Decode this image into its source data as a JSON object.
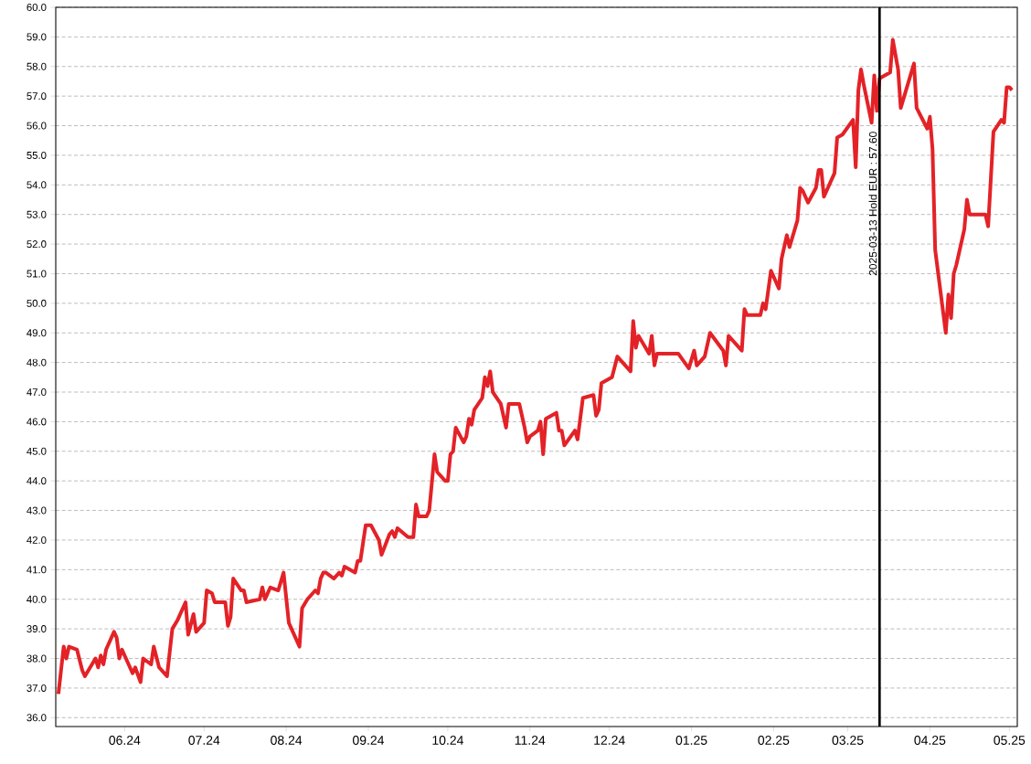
{
  "chart_data": {
    "type": "line",
    "color": "#e32227",
    "grid": "y",
    "xlim": [
      "2024-05-06",
      "2025-05-04"
    ],
    "ylim": [
      35.7,
      60
    ],
    "xticks": [
      {
        "value": "2024-06-01",
        "label": "06.24"
      },
      {
        "value": "2024-07-01",
        "label": "07.24"
      },
      {
        "value": "2024-08-01",
        "label": "08.24"
      },
      {
        "value": "2024-09-01",
        "label": "09.24"
      },
      {
        "value": "2024-10-01",
        "label": "10.24"
      },
      {
        "value": "2024-11-01",
        "label": "11.24"
      },
      {
        "value": "2024-12-01",
        "label": "12.24"
      },
      {
        "value": "2025-01-01",
        "label": "01.25"
      },
      {
        "value": "2025-02-01",
        "label": "02.25"
      },
      {
        "value": "2025-03-01",
        "label": "03.25"
      },
      {
        "value": "2025-04-01",
        "label": "04.25"
      },
      {
        "value": "2025-05-01",
        "label": "05.25"
      }
    ],
    "yticks": [
      {
        "value": 36,
        "label": "36.0"
      },
      {
        "value": 37,
        "label": "37.0"
      },
      {
        "value": 38,
        "label": "38.0"
      },
      {
        "value": 39,
        "label": "39.0"
      },
      {
        "value": 40,
        "label": "40.0"
      },
      {
        "value": 41,
        "label": "41.0"
      },
      {
        "value": 42,
        "label": "42.0"
      },
      {
        "value": 43,
        "label": "43.0"
      },
      {
        "value": 44,
        "label": "44.0"
      },
      {
        "value": 45,
        "label": "45.0"
      },
      {
        "value": 46,
        "label": "46.0"
      },
      {
        "value": 47,
        "label": "47.0"
      },
      {
        "value": 48,
        "label": "48.0"
      },
      {
        "value": 49,
        "label": "49.0"
      },
      {
        "value": 50,
        "label": "50.0"
      },
      {
        "value": 51,
        "label": "51.0"
      },
      {
        "value": 52,
        "label": "52.0"
      },
      {
        "value": 53,
        "label": "53.0"
      },
      {
        "value": 54,
        "label": "54.0"
      },
      {
        "value": 55,
        "label": "55.0"
      },
      {
        "value": 56,
        "label": "56.0"
      },
      {
        "value": 57,
        "label": "57.0"
      },
      {
        "value": 58,
        "label": "58.0"
      },
      {
        "value": 59,
        "label": "59.0"
      },
      {
        "value": 60,
        "label": "60.0"
      }
    ],
    "x": [
      "2024-05-07",
      "2024-05-09",
      "2024-05-10",
      "2024-05-11",
      "2024-05-14",
      "2024-05-16",
      "2024-05-17",
      "2024-05-21",
      "2024-05-22",
      "2024-05-23",
      "2024-05-24",
      "2024-05-25",
      "2024-05-28",
      "2024-05-29",
      "2024-05-30",
      "2024-05-31",
      "2024-06-04",
      "2024-06-05",
      "2024-06-07",
      "2024-06-08",
      "2024-06-11",
      "2024-06-12",
      "2024-06-14",
      "2024-06-17",
      "2024-06-19",
      "2024-06-21",
      "2024-06-24",
      "2024-06-25",
      "2024-06-27",
      "2024-06-28",
      "2024-07-01",
      "2024-07-02",
      "2024-07-04",
      "2024-07-05",
      "2024-07-09",
      "2024-07-10",
      "2024-07-11",
      "2024-07-12",
      "2024-07-15",
      "2024-07-16",
      "2024-07-17",
      "2024-07-22",
      "2024-07-23",
      "2024-07-24",
      "2024-07-26",
      "2024-07-29",
      "2024-07-31",
      "2024-08-02",
      "2024-08-06",
      "2024-08-07",
      "2024-08-09",
      "2024-08-12",
      "2024-08-13",
      "2024-08-14",
      "2024-08-15",
      "2024-08-16",
      "2024-08-19",
      "2024-08-21",
      "2024-08-22",
      "2024-08-23",
      "2024-08-27",
      "2024-08-28",
      "2024-08-29",
      "2024-08-31",
      "2024-09-02",
      "2024-09-05",
      "2024-09-06",
      "2024-09-09",
      "2024-09-10",
      "2024-09-11",
      "2024-09-12",
      "2024-09-16",
      "2024-09-18",
      "2024-09-19",
      "2024-09-20",
      "2024-09-23",
      "2024-09-24",
      "2024-09-26",
      "2024-09-27",
      "2024-09-30",
      "2024-10-01",
      "2024-10-02",
      "2024-10-03",
      "2024-10-04",
      "2024-10-07",
      "2024-10-08",
      "2024-10-09",
      "2024-10-10",
      "2024-10-11",
      "2024-10-14",
      "2024-10-15",
      "2024-10-16",
      "2024-10-17",
      "2024-10-18",
      "2024-10-21",
      "2024-10-23",
      "2024-10-24",
      "2024-10-28",
      "2024-10-30",
      "2024-10-31",
      "2024-11-01",
      "2024-11-04",
      "2024-11-05",
      "2024-11-06",
      "2024-11-07",
      "2024-11-11",
      "2024-11-12",
      "2024-11-13",
      "2024-11-14",
      "2024-11-18",
      "2024-11-19",
      "2024-11-21",
      "2024-11-25",
      "2024-11-26",
      "2024-11-27",
      "2024-11-28",
      "2024-12-02",
      "2024-12-04",
      "2024-12-05",
      "2024-12-09",
      "2024-12-10",
      "2024-12-11",
      "2024-12-12",
      "2024-12-16",
      "2024-12-17",
      "2024-12-18",
      "2024-12-19",
      "2024-12-27",
      "2024-12-31",
      "2025-01-02",
      "2025-01-03",
      "2025-01-06",
      "2025-01-08",
      "2025-01-13",
      "2025-01-14",
      "2025-01-15",
      "2025-01-20",
      "2025-01-21",
      "2025-01-22",
      "2025-01-27",
      "2025-01-28",
      "2025-01-29",
      "2025-01-31",
      "2025-02-03",
      "2025-02-04",
      "2025-02-06",
      "2025-02-07",
      "2025-02-10",
      "2025-02-11",
      "2025-02-12",
      "2025-02-14",
      "2025-02-17",
      "2025-02-18",
      "2025-02-19",
      "2025-02-20",
      "2025-02-24",
      "2025-02-25",
      "2025-02-27",
      "2025-03-03",
      "2025-03-04",
      "2025-03-05",
      "2025-03-06",
      "2025-03-07",
      "2025-03-10",
      "2025-03-11",
      "2025-03-12",
      "2025-03-13",
      "2025-03-17",
      "2025-03-18",
      "2025-03-20",
      "2025-03-21",
      "2025-03-26",
      "2025-03-27",
      "2025-03-31",
      "2025-04-01",
      "2025-04-02",
      "2025-04-03",
      "2025-04-07",
      "2025-04-08",
      "2025-04-09",
      "2025-04-10",
      "2025-04-11",
      "2025-04-14",
      "2025-04-15",
      "2025-04-16",
      "2025-04-22",
      "2025-04-23",
      "2025-04-25",
      "2025-04-28",
      "2025-04-29",
      "2025-04-30",
      "2025-05-01",
      "2025-05-02"
    ],
    "values": [
      36.8,
      38.4,
      38.0,
      38.4,
      38.3,
      37.6,
      37.4,
      38.0,
      37.7,
      38.1,
      37.8,
      38.3,
      38.9,
      38.7,
      38.0,
      38.3,
      37.5,
      37.7,
      37.2,
      38.0,
      37.8,
      38.4,
      37.7,
      37.4,
      39.0,
      39.3,
      39.9,
      38.8,
      39.5,
      38.9,
      39.2,
      40.3,
      40.2,
      39.9,
      39.9,
      39.1,
      39.4,
      40.7,
      40.3,
      40.3,
      39.9,
      40.0,
      40.4,
      40.0,
      40.4,
      40.3,
      40.9,
      39.2,
      38.4,
      39.7,
      40.0,
      40.3,
      40.2,
      40.7,
      40.9,
      40.9,
      40.7,
      40.9,
      40.8,
      41.1,
      40.9,
      41.3,
      41.3,
      42.5,
      42.5,
      42.0,
      41.5,
      42.2,
      42.3,
      42.1,
      42.4,
      42.1,
      42.1,
      43.2,
      42.8,
      42.8,
      43.0,
      44.9,
      44.3,
      44.0,
      44.0,
      44.9,
      45.0,
      45.8,
      45.3,
      45.5,
      46.1,
      45.9,
      46.4,
      46.8,
      47.5,
      47.2,
      47.7,
      47.0,
      46.6,
      45.8,
      46.6,
      46.6,
      45.8,
      45.3,
      45.5,
      45.7,
      46.0,
      44.9,
      46.1,
      46.3,
      45.7,
      45.7,
      45.2,
      45.7,
      45.4,
      46.8,
      46.9,
      46.2,
      46.4,
      47.3,
      47.5,
      48.2,
      48.1,
      47.7,
      49.4,
      48.5,
      48.9,
      48.3,
      48.9,
      47.9,
      48.3,
      48.3,
      47.8,
      48.4,
      47.9,
      48.2,
      49.0,
      48.4,
      47.9,
      48.9,
      48.4,
      49.8,
      49.6,
      49.6,
      50.0,
      49.8,
      51.1,
      50.5,
      51.5,
      52.3,
      51.9,
      52.8,
      53.9,
      53.8,
      53.4,
      53.9,
      54.5,
      54.5,
      53.6,
      54.4,
      55.6,
      55.7,
      56.2,
      54.6,
      57.2,
      57.9,
      57.4,
      56.1,
      57.7,
      56.5,
      57.6,
      57.8,
      58.9,
      57.9,
      56.6,
      58.1,
      56.6,
      55.9,
      56.3,
      55.2,
      51.8,
      49.0,
      50.3,
      49.5,
      51.0,
      51.3,
      52.5,
      53.5,
      53.0,
      53.0,
      52.6,
      55.8,
      56.2,
      56.1,
      57.3,
      57.3,
      57.2
    ],
    "ref_lines": [
      {
        "axis": "x",
        "value": "2025-03-13",
        "label": "2025-03-13 Hold EUR : 57.60",
        "color": "#000000"
      }
    ]
  }
}
